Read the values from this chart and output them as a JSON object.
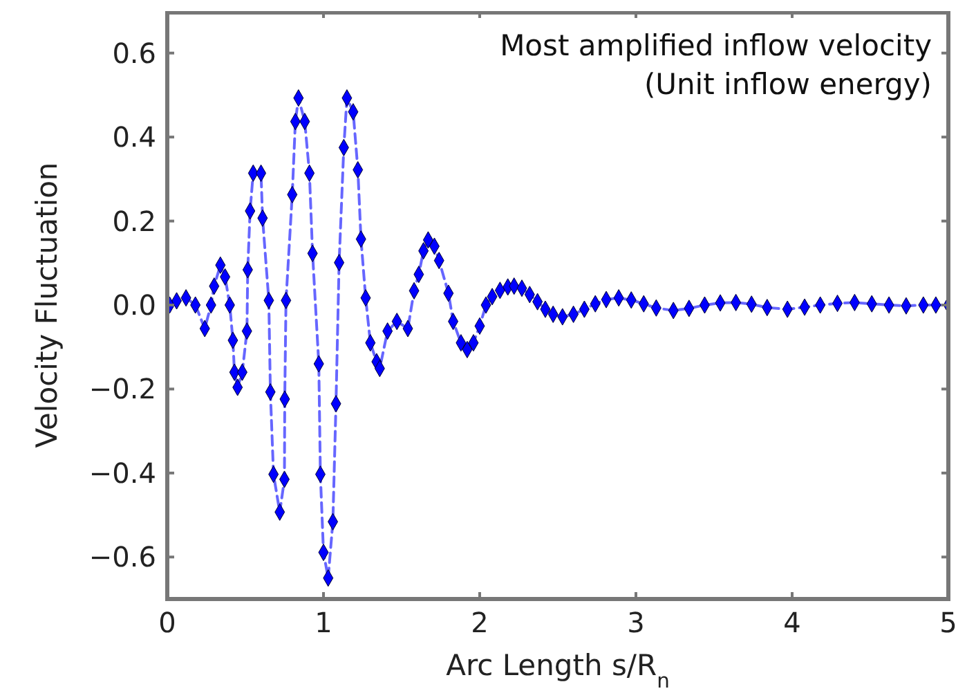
{
  "chart_data": {
    "type": "line",
    "title": "Most amplified inflow velocity",
    "subtitle": "(Unit inflow energy)",
    "xlabel": "Arc Length s/R$_{n}$",
    "ylabel": "Velocity Fluctuation",
    "xlim": [
      0,
      5
    ],
    "xticks": [
      0,
      1,
      2,
      3,
      4,
      5
    ],
    "ylim": [
      -0.7,
      0.7
    ],
    "yticks": [
      {
        "value": -0.6,
        "label": "−0.6"
      },
      {
        "value": -0.4,
        "label": "−0.4"
      },
      {
        "value": -0.2,
        "label": "−0.2"
      },
      {
        "value": 0,
        "label": "0.0"
      },
      0.2,
      0.4,
      0.6
    ],
    "grid": false,
    "marker": "diamond",
    "line_style": "dashed",
    "series": [
      {
        "color": "#0000ff",
        "x": [
          0.015,
          0.06,
          0.12,
          0.18,
          0.24,
          0.28,
          0.3,
          0.34,
          0.37,
          0.4,
          0.42,
          0.43,
          0.45,
          0.48,
          0.51,
          0.515,
          0.53,
          0.55,
          0.6,
          0.61,
          0.65,
          0.66,
          0.68,
          0.72,
          0.75,
          0.752,
          0.76,
          0.8,
          0.82,
          0.84,
          0.88,
          0.91,
          0.93,
          0.97,
          0.98,
          1.0,
          1.03,
          1.06,
          1.08,
          1.1,
          1.13,
          1.15,
          1.19,
          1.22,
          1.24,
          1.27,
          1.3,
          1.34,
          1.36,
          1.41,
          1.47,
          1.54,
          1.58,
          1.61,
          1.64,
          1.67,
          1.71,
          1.74,
          1.8,
          1.83,
          1.88,
          1.92,
          1.96,
          2.0,
          2.04,
          2.08,
          2.13,
          2.18,
          2.22,
          2.27,
          2.32,
          2.37,
          2.42,
          2.47,
          2.53,
          2.6,
          2.67,
          2.74,
          2.81,
          2.89,
          2.97,
          3.05,
          3.13,
          3.24,
          3.34,
          3.44,
          3.54,
          3.64,
          3.74,
          3.84,
          3.97,
          4.08,
          4.18,
          4.29,
          4.4,
          4.51,
          4.62,
          4.73,
          4.84,
          4.92,
          5.0
        ],
        "values": [
          0.0,
          0.01,
          0.017,
          0.0,
          -0.056,
          0.0,
          0.045,
          0.095,
          0.067,
          0.0,
          -0.084,
          -0.16,
          -0.196,
          -0.16,
          -0.062,
          0.084,
          0.224,
          0.314,
          0.314,
          0.207,
          0.011,
          -0.207,
          -0.403,
          -0.493,
          -0.415,
          -0.224,
          0.011,
          0.263,
          0.437,
          0.493,
          0.437,
          0.314,
          0.123,
          -0.14,
          -0.403,
          -0.589,
          -0.65,
          -0.516,
          -0.235,
          0.101,
          0.375,
          0.493,
          0.46,
          0.322,
          0.157,
          0.017,
          -0.09,
          -0.135,
          -0.151,
          -0.062,
          -0.039,
          -0.056,
          0.034,
          0.073,
          0.129,
          0.155,
          0.14,
          0.106,
          0.028,
          -0.039,
          -0.09,
          -0.106,
          -0.09,
          -0.05,
          0.0,
          0.02,
          0.035,
          0.043,
          0.045,
          0.04,
          0.025,
          0.008,
          -0.01,
          -0.022,
          -0.028,
          -0.022,
          -0.01,
          0.003,
          0.013,
          0.017,
          0.012,
          0.003,
          -0.007,
          -0.013,
          -0.008,
          0.0,
          0.005,
          0.006,
          0.002,
          -0.006,
          -0.01,
          -0.005,
          0.0,
          0.004,
          0.006,
          0.003,
          0.0,
          -0.002,
          0.0,
          0.0,
          0.0
        ]
      }
    ]
  }
}
